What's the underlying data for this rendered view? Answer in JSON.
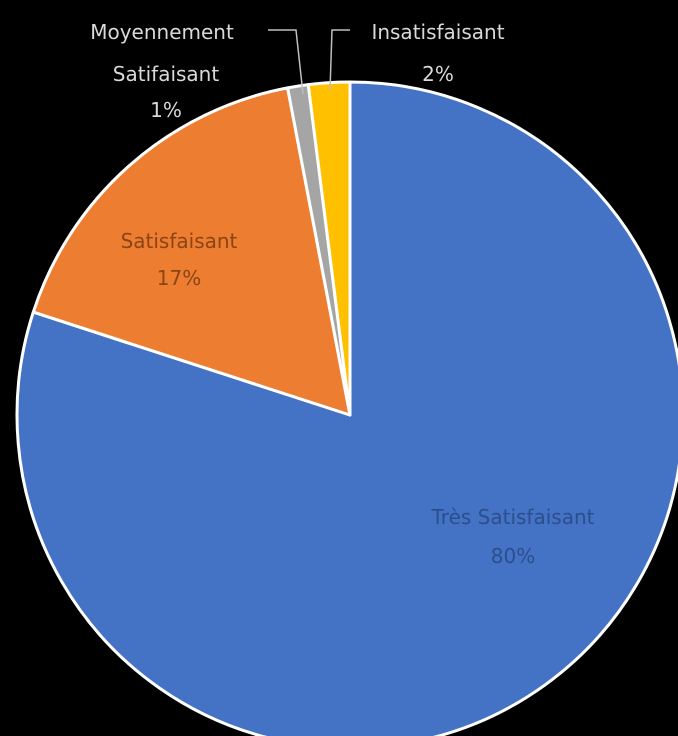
{
  "chart_data": {
    "type": "pie",
    "start_angle_deg": 0,
    "direction": "clockwise",
    "slices": [
      {
        "label": "Très Satisfaisant",
        "value": 80,
        "value_label": "80%",
        "color": "#4472C4",
        "label_color": "#2b4f8c"
      },
      {
        "label": "Satisfaisant",
        "value": 17,
        "value_label": "17%",
        "color": "#ED7D31",
        "label_color": "#8a4415"
      },
      {
        "label": "Moyennement Satifaisant",
        "label_lines": [
          "Moyennement",
          "Satifaisant"
        ],
        "value": 1,
        "value_label": "1%",
        "color": "#A5A5A5",
        "label_color": "#d9d9d9"
      },
      {
        "label": "Insatisfaisant",
        "value": 2,
        "value_label": "2%",
        "color": "#FFC000",
        "label_color": "#d9d9d9"
      }
    ],
    "legend": "none",
    "background": "#000000"
  }
}
